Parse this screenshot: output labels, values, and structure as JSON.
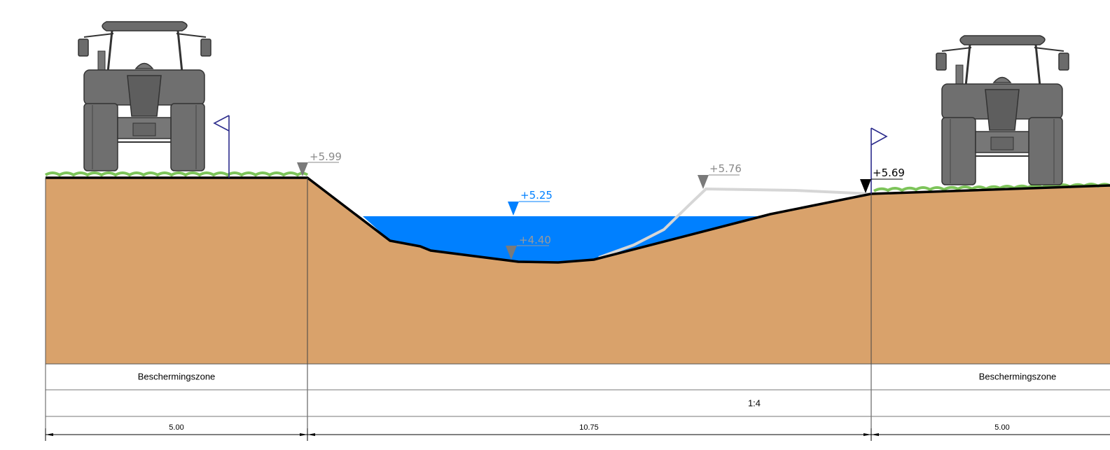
{
  "levels": {
    "left_bank": "+5.99",
    "water": "+5.25",
    "bed": "+4.40",
    "original_right_bank": "+5.76",
    "right_bank": "+5.69"
  },
  "table": {
    "zone_left": "Beschermingszone",
    "zone_right": "Beschermingszone",
    "slope": "1:4",
    "width_left": "5.00",
    "width_middle": "10.75",
    "width_right": "5.00"
  },
  "colors": {
    "soil": "#D9A26B",
    "water": "#0080FF",
    "grass": "#7DC45A",
    "tractor": "#6F6F6F",
    "flag": "#2C2C8C",
    "original_profile": "#D6D6D6"
  }
}
